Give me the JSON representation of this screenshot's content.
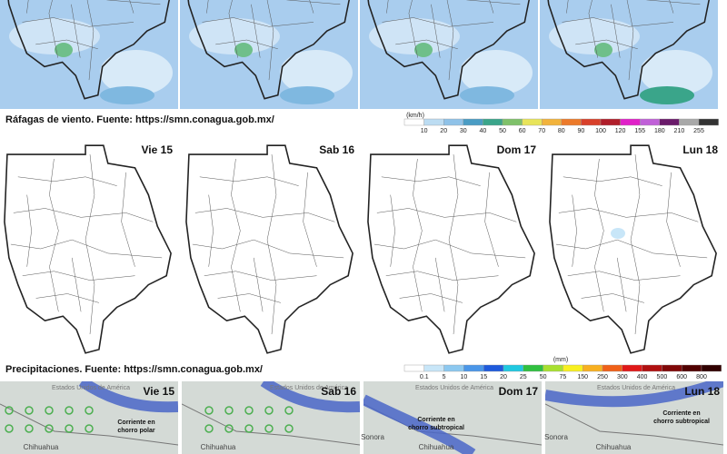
{
  "wind": {
    "caption": "Ráfagas de viento.  Fuente: https://smn.conagua.gob.mx/",
    "unit": "(km/h)",
    "scale": [
      10,
      20,
      30,
      40,
      50,
      60,
      70,
      80,
      90,
      100,
      120,
      155,
      180,
      210,
      255
    ],
    "colors": [
      "#ffffff",
      "#bcdcf2",
      "#8fc2e8",
      "#4a9cc4",
      "#3aa58a",
      "#7fc16a",
      "#e8e45a",
      "#f2b33c",
      "#ec7a2a",
      "#d8402a",
      "#b01e2a",
      "#e020c8",
      "#c060d8",
      "#6a1a6a",
      "#a8a8a8",
      "#333333"
    ]
  },
  "precipitation": {
    "days": [
      "Vie 15",
      "Sab 16",
      "Dom 17",
      "Lun 18"
    ],
    "caption": "Precipitaciones.  Fuente: https://smn.conagua.gob.mx/",
    "unit": "(mm)",
    "scale": [
      0.1,
      5,
      10,
      15,
      20,
      25,
      50,
      75,
      150,
      250,
      300,
      400,
      500,
      600,
      800
    ],
    "colors": [
      "#ffffff",
      "#c8e6f8",
      "#8cc8f0",
      "#4a96e8",
      "#1e5adc",
      "#20c8e0",
      "#30c040",
      "#a8e030",
      "#f8f020",
      "#f8b020",
      "#f06018",
      "#e01818",
      "#b01010",
      "#800808",
      "#500000",
      "#300000"
    ]
  },
  "jet_stream": {
    "days": [
      "Vie 15",
      "Sab 16",
      "Dom 17",
      "Lun 18"
    ],
    "panels": [
      {
        "country": "Estados Unidos de América",
        "current": [
          "Corriente en",
          "chorro polar"
        ],
        "places": [
          "Chihuahua"
        ]
      },
      {
        "country": "Estados Unidos de América",
        "current": [],
        "places": [
          "Chihuahua"
        ]
      },
      {
        "country": "Estados Unidos de América",
        "current": [
          "Corriente en",
          "chorro subtropical"
        ],
        "places": [
          "Sonora",
          "Chihuahua"
        ]
      },
      {
        "country": "Estados Unidos de América",
        "current": [
          "Corriente en",
          "chorro subtropical"
        ],
        "places": [
          "Sonora",
          "Chihuahua"
        ]
      }
    ]
  }
}
